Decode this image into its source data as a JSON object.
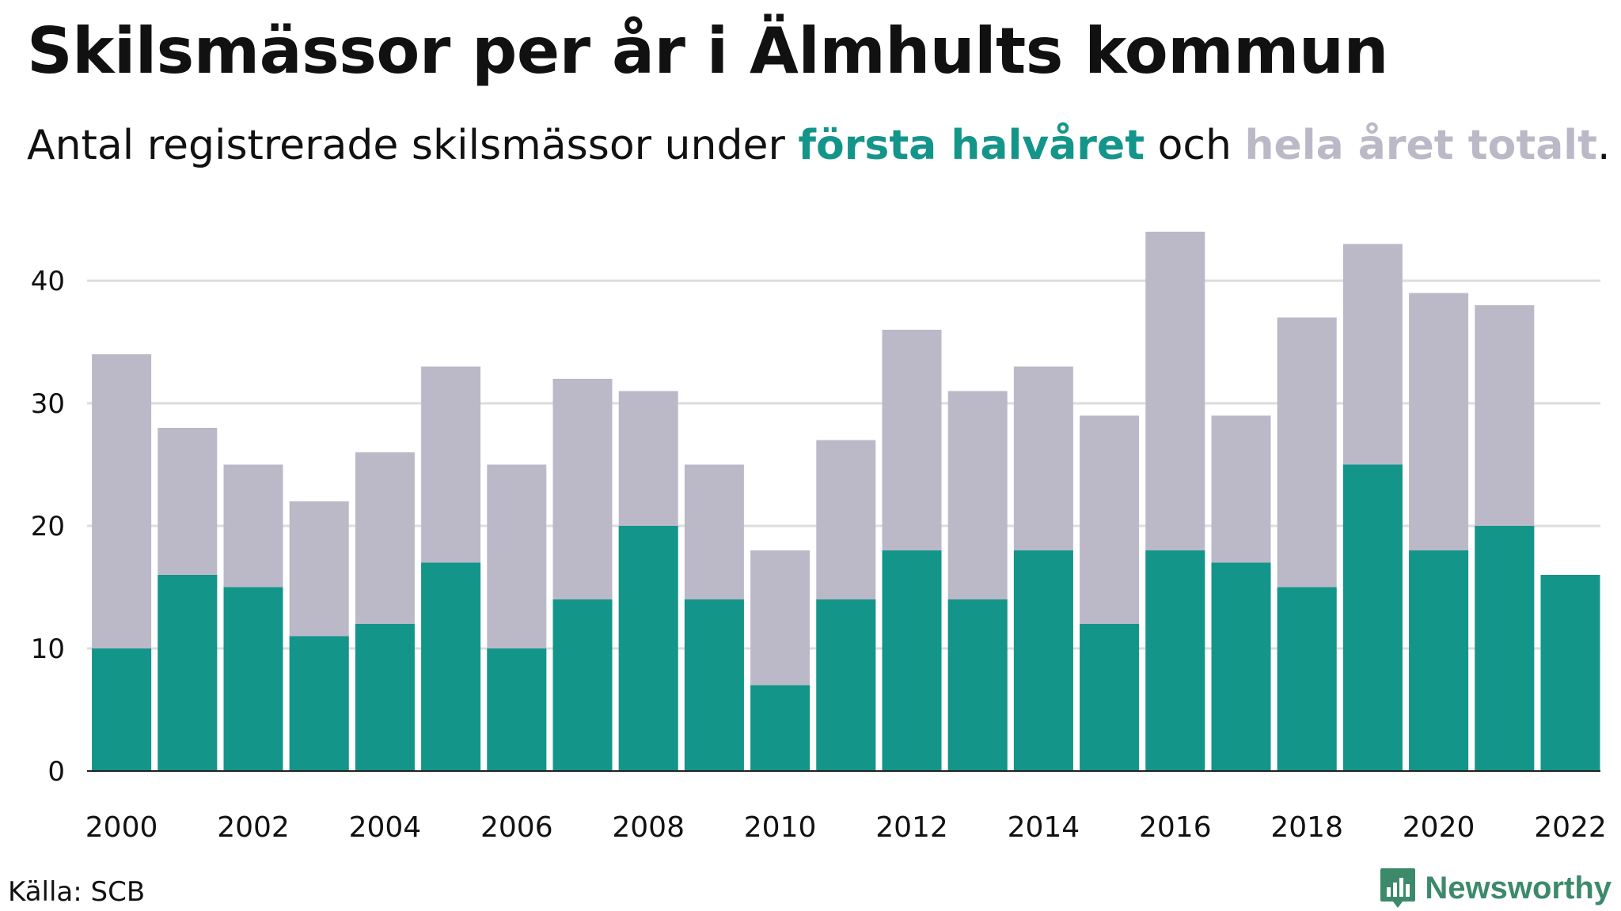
{
  "title": "Skilsmässor per år i Älmhults kommun",
  "subtitle": {
    "prefix": "Antal registrerade skilsmässor under ",
    "first_half_label": "första halvåret",
    "middle": " och ",
    "whole_year_label": "hela året totalt",
    "suffix": "."
  },
  "source": "Källa: SCB",
  "logo": {
    "text": "Newsworthy",
    "icon": "newsworthy-chart-badge-icon"
  },
  "colors": {
    "first_half": "#14958a",
    "whole_year": "#bbb9c8",
    "grid": "#dddddd",
    "logo": "#3c8a6a"
  },
  "chart_data": {
    "type": "bar",
    "stacking": "overlay",
    "x": [
      2000,
      2001,
      2002,
      2003,
      2004,
      2005,
      2006,
      2007,
      2008,
      2009,
      2010,
      2011,
      2012,
      2013,
      2014,
      2015,
      2016,
      2017,
      2018,
      2019,
      2020,
      2021,
      2022
    ],
    "series": [
      {
        "name": "hela året totalt",
        "color": "#bbb9c8",
        "values": [
          34,
          28,
          25,
          22,
          26,
          33,
          25,
          32,
          31,
          25,
          18,
          27,
          36,
          31,
          33,
          29,
          44,
          29,
          37,
          43,
          39,
          38,
          null
        ]
      },
      {
        "name": "första halvåret",
        "color": "#14958a",
        "values": [
          10,
          16,
          15,
          11,
          12,
          17,
          10,
          14,
          20,
          14,
          7,
          14,
          18,
          14,
          18,
          12,
          18,
          17,
          15,
          25,
          18,
          20,
          16
        ]
      }
    ],
    "x_tick_labels": [
      "2000",
      "2002",
      "2004",
      "2006",
      "2008",
      "2010",
      "2012",
      "2014",
      "2016",
      "2018",
      "2020",
      "2022"
    ],
    "y_ticks": [
      0,
      10,
      20,
      30,
      40
    ],
    "ylim": [
      0,
      45
    ],
    "grid": true,
    "xlabel": "",
    "ylabel": ""
  }
}
